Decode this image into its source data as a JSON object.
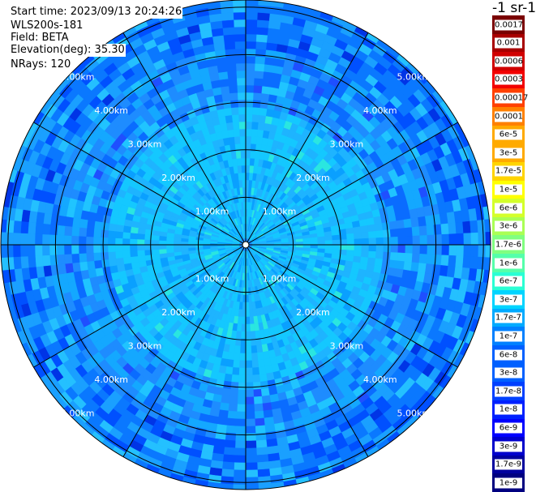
{
  "info": {
    "start_time": "Start time: 2023/09/13 20:24:26",
    "instrument": "WLS200s-181",
    "field": "Field: BETA",
    "elevation": "Elevation(deg): 35.30",
    "nrays": "NRays: 120"
  },
  "colorbar": {
    "unit": "-1 sr-1",
    "labels": [
      "0.0017",
      "0.001",
      "0.0006",
      "0.0003",
      "0.00017",
      "0.0001",
      "6e-5",
      "3e-5",
      "1.7e-5",
      "1e-5",
      "6e-6",
      "3e-6",
      "1.7e-6",
      "1e-6",
      "6e-7",
      "3e-7",
      "1.7e-7",
      "1e-7",
      "6e-8",
      "3e-8",
      "1.7e-8",
      "1e-8",
      "6e-9",
      "3e-9",
      "1.7e-9",
      "1e-9"
    ],
    "colors": [
      "#7a0000",
      "#a80000",
      "#d00000",
      "#f20000",
      "#ff4000",
      "#ff8000",
      "#ffaa00",
      "#ffd400",
      "#ffff00",
      "#d4ff2a",
      "#aaff55",
      "#80ff80",
      "#55ffaa",
      "#2affd4",
      "#00d4ff",
      "#00aaff",
      "#0080ff",
      "#0060ff",
      "#0040ff",
      "#0020ff",
      "#0000ff",
      "#0000cc",
      "#00009e",
      "#000080"
    ]
  },
  "plot": {
    "range_labels": [
      "1.00km",
      "2.00km",
      "3.00km",
      "4.00km",
      "5.00km"
    ],
    "range_rings_km": [
      1,
      2,
      3,
      4,
      5
    ],
    "max_range_km": 5.15,
    "spoke_angles_deg": [
      0,
      30,
      60,
      90,
      120,
      150,
      180,
      210,
      240,
      270,
      300,
      330
    ]
  }
}
